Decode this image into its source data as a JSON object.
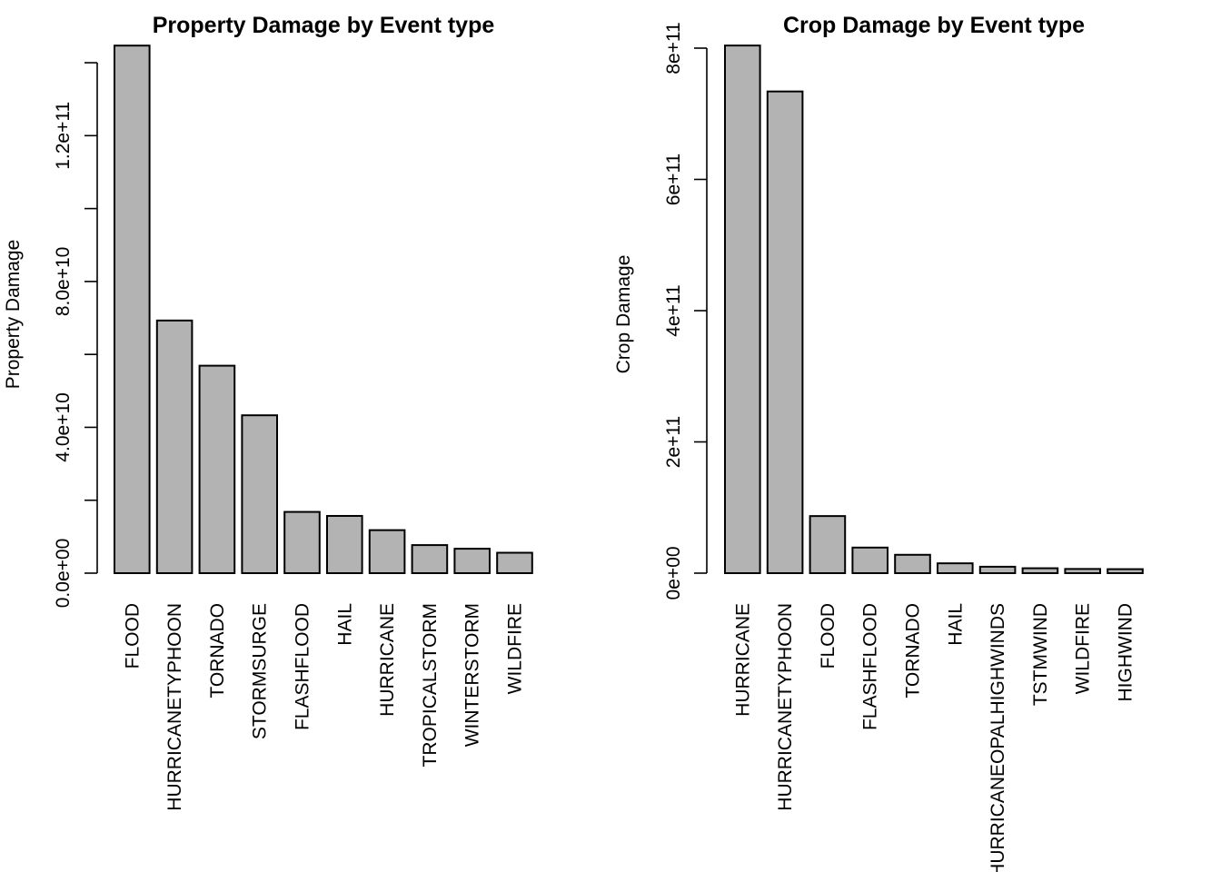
{
  "colors": {
    "bar_fill": "#b3b3b3",
    "bar_stroke": "#000000"
  },
  "chart_data": [
    {
      "type": "bar",
      "title": "Property Damage by Event type",
      "xlabel": "",
      "ylabel": "Property Damage",
      "ylim": [
        0,
        144000000000
      ],
      "y_ticks": [
        0,
        20000000000,
        40000000000,
        60000000000,
        80000000000,
        100000000000,
        120000000000,
        140000000000
      ],
      "y_tick_labels": [
        "0.0e+00",
        "",
        "4.0e+10",
        "",
        "8.0e+10",
        "",
        "1.2e+11",
        ""
      ],
      "grid": false,
      "categories": [
        "FLOOD",
        "HURRICANETYPHOON",
        "TORNADO",
        "STORMSURGE",
        "FLASHFLOOD",
        "HAIL",
        "HURRICANE",
        "TROPICALSTORM",
        "WINTERSTORM",
        "WILDFIRE"
      ],
      "values": [
        144700000000,
        69300000000,
        56900000000,
        43300000000,
        16800000000,
        15700000000,
        11800000000,
        7700000000,
        6700000000,
        5600000000
      ]
    },
    {
      "type": "bar",
      "title": "Crop Damage by Event type",
      "xlabel": "",
      "ylabel": "Crop Damage",
      "ylim": [
        0,
        800000000000
      ],
      "y_ticks": [
        0,
        200000000000,
        400000000000,
        600000000000,
        800000000000
      ],
      "y_tick_labels": [
        "0e+00",
        "2e+11",
        "4e+11",
        "6e+11",
        "8e+11"
      ],
      "grid": false,
      "categories": [
        "HURRICANE",
        "HURRICANETYPHOON",
        "FLOOD",
        "FLASHFLOOD",
        "TORNADO",
        "HAIL",
        "HURRICANEOPALHIGHWINDS",
        "TSTMWIND",
        "WILDFIRE",
        "HIGHWIND"
      ],
      "values": [
        804000000000,
        734000000000,
        87000000000,
        39000000000,
        28000000000,
        15000000000,
        9800000000,
        7500000000,
        6400000000,
        6100000000
      ]
    }
  ]
}
